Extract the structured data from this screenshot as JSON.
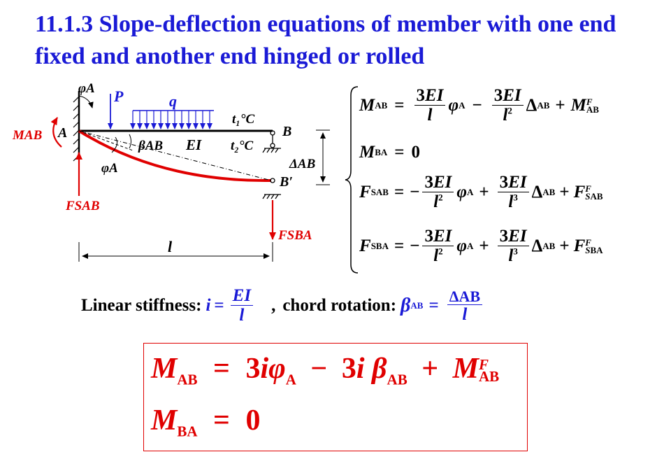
{
  "title": "11.1.3  Slope-deflection equations of member with one end fixed and another end hinged or rolled",
  "diagram": {
    "phi_a_top": "φA",
    "load_p": "P",
    "load_q": "q",
    "t1": "t₁°C",
    "t2": "t₂°C",
    "end_a": "A",
    "end_b": "B",
    "end_b_prime": "B′",
    "moment_ab": "MAB",
    "beta_ab": "βAB",
    "ei": "EI",
    "phi_a_bottom": "φA",
    "delta_ab": "ΔAB",
    "f_sab": "FSAB",
    "f_sba": "FSBA",
    "length": "l",
    "colors": {
      "load": "#1a1ad6",
      "force": "#e00000",
      "beam": "#000000"
    }
  },
  "stiffness": {
    "label": "Linear stiffness:",
    "symbol": "i",
    "num": "EI",
    "den": "l",
    "sep": ",",
    "chord_label": "chord rotation:",
    "chord_symbol": "β",
    "chord_sub": "AB",
    "chord_num": "ΔAB",
    "chord_den": "l"
  },
  "result": {
    "line1": "MAB = 3iφA − 3iβAB + MFAB",
    "line2": "MBA = 0"
  }
}
